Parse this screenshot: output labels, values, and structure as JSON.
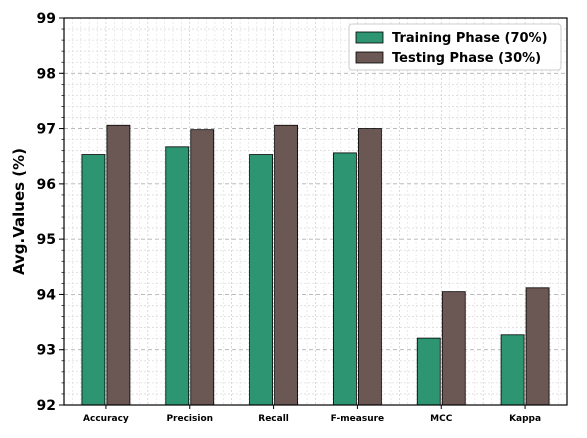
{
  "chart_data": {
    "type": "bar",
    "categories": [
      "Accuracy",
      "Precision",
      "Recall",
      "F-measure",
      "MCC",
      "Kappa"
    ],
    "series": [
      {
        "name": "Training Phase (70%)",
        "values": [
          96.53,
          96.67,
          96.53,
          96.56,
          93.21,
          93.27
        ],
        "color": "#2e9573"
      },
      {
        "name": "Testing Phase (30%)",
        "values": [
          97.06,
          96.98,
          97.06,
          97.0,
          94.05,
          94.12
        ],
        "color": "#6b5753"
      }
    ],
    "title": "",
    "xlabel": "",
    "ylabel": "Avg.Values (%)",
    "ylim": [
      92,
      99
    ],
    "yticks": [
      92,
      93,
      94,
      95,
      96,
      97,
      98,
      99
    ],
    "grid": true,
    "legend_position": "top-right"
  }
}
